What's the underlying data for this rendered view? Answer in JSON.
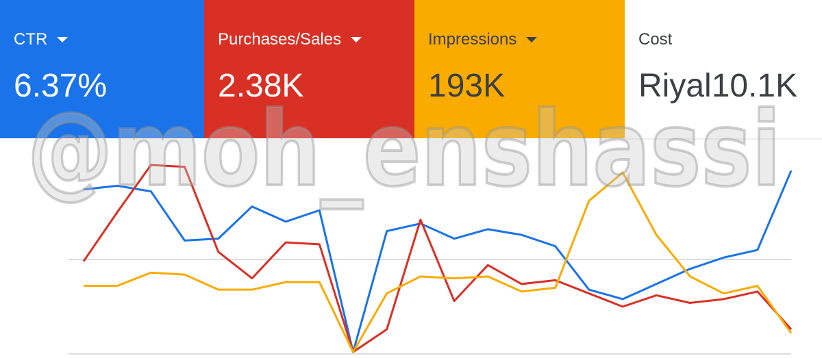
{
  "cards": [
    {
      "label": "CTR",
      "value": "6.37%",
      "color": "#1a73e8",
      "dropdown": true
    },
    {
      "label": "Purchases/Sales",
      "value": "2.38K",
      "color": "#d93025",
      "dropdown": true
    },
    {
      "label": "Impressions",
      "value": "193K",
      "color": "#f9ab00",
      "dropdown": true
    },
    {
      "label": "Cost",
      "value": "Riyal10.1K",
      "color": "#ffffff",
      "dropdown": false
    }
  ],
  "watermark": "@moh_enshassi",
  "chart_data": {
    "type": "line",
    "ylim": [
      0,
      100
    ],
    "yticks": [
      0,
      50
    ],
    "grid": true,
    "series": [
      {
        "name": "CTR",
        "color": "#1a73e8",
        "values": [
          87,
          89,
          86,
          60,
          61,
          78,
          70,
          76,
          1,
          65,
          69,
          61,
          66,
          63,
          57,
          34,
          29,
          37,
          45,
          51,
          55,
          97
        ]
      },
      {
        "name": "Purchases/Sales",
        "color": "#d93025",
        "values": [
          49,
          75,
          100,
          99,
          54,
          40,
          59,
          58,
          1,
          13,
          71,
          28,
          47,
          37,
          39,
          32,
          25,
          31,
          27,
          29,
          33,
          13
        ]
      },
      {
        "name": "Impressions",
        "color": "#f9ab00",
        "values": [
          36,
          36,
          43,
          42,
          34,
          34,
          38,
          38,
          1,
          32,
          41,
          40,
          41,
          33,
          35,
          81,
          96,
          63,
          41,
          32,
          36,
          11
        ]
      }
    ]
  }
}
